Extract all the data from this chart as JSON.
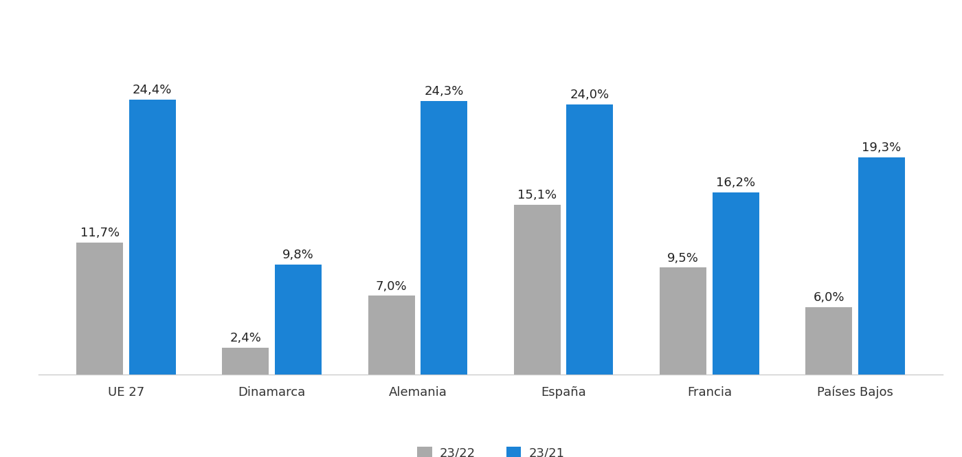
{
  "categories": [
    "UE 27",
    "Dinamarca",
    "Alemania",
    "España",
    "Francia",
    "Países Bajos"
  ],
  "series_2322": [
    11.7,
    2.4,
    7.0,
    15.1,
    9.5,
    6.0
  ],
  "series_2321": [
    24.4,
    9.8,
    24.3,
    24.0,
    16.2,
    19.3
  ],
  "color_2322": "#aaaaaa",
  "color_2321": "#1b83d6",
  "label_2322": "23/22",
  "label_2321": "23/21",
  "background_color": "#ffffff",
  "bar_width": 0.32,
  "ylim": [
    0,
    30
  ],
  "tick_fontsize": 13,
  "legend_fontsize": 13,
  "value_fontsize": 13,
  "value_color": "#222222",
  "spine_color": "#cccccc",
  "group_padding": 0.15
}
